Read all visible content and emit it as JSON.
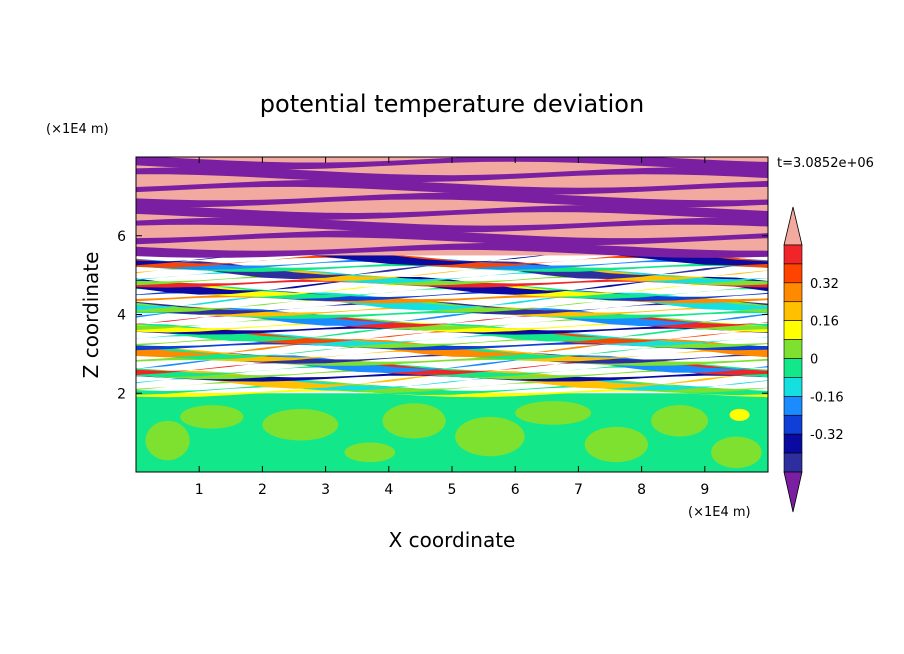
{
  "chart_data": {
    "type": "heatmap",
    "title": "potential temperature deviation",
    "xlabel": "X coordinate",
    "ylabel": "Z coordinate",
    "x_unit": "(×1E4 m)",
    "y_unit": "(×1E4 m)",
    "time_label": "t=3.0852e+06",
    "xlim": [
      0,
      10
    ],
    "ylim": [
      0,
      8
    ],
    "x_ticks": [
      1,
      2,
      3,
      4,
      5,
      6,
      7,
      8,
      9
    ],
    "y_ticks": [
      2,
      4,
      6
    ],
    "grid": false,
    "colorbar": {
      "levels": [
        -0.48,
        -0.4,
        -0.32,
        -0.24,
        -0.16,
        -0.08,
        0,
        0.08,
        0.16,
        0.24,
        0.32,
        0.4,
        0.48
      ],
      "colors": [
        "#7b1fa2",
        "#2e2e9e",
        "#0a0aa0",
        "#0f3fd6",
        "#1a8cff",
        "#14e0e0",
        "#12e88a",
        "#7fe12f",
        "#ffff00",
        "#ffc000",
        "#ff8a00",
        "#ff4400",
        "#f0252a",
        "#f2a9a0"
      ],
      "tick_labels": [
        "0.32",
        "0.16",
        "0",
        "-0.16",
        "-0.32"
      ],
      "tick_values": [
        0.32,
        0.16,
        0,
        -0.16,
        -0.32
      ],
      "extend": "both"
    },
    "regions": [
      {
        "z_range": [
          0,
          2
        ],
        "description_values": "mostly between -0.08 and 0.08"
      },
      {
        "z_range": [
          2,
          5.5
        ],
        "description_values": "mixed layers between -0.48 and 0.48"
      },
      {
        "z_range": [
          5.5,
          8
        ],
        "description_values": "alternating bands of about -0.48 and +0.48"
      }
    ]
  }
}
